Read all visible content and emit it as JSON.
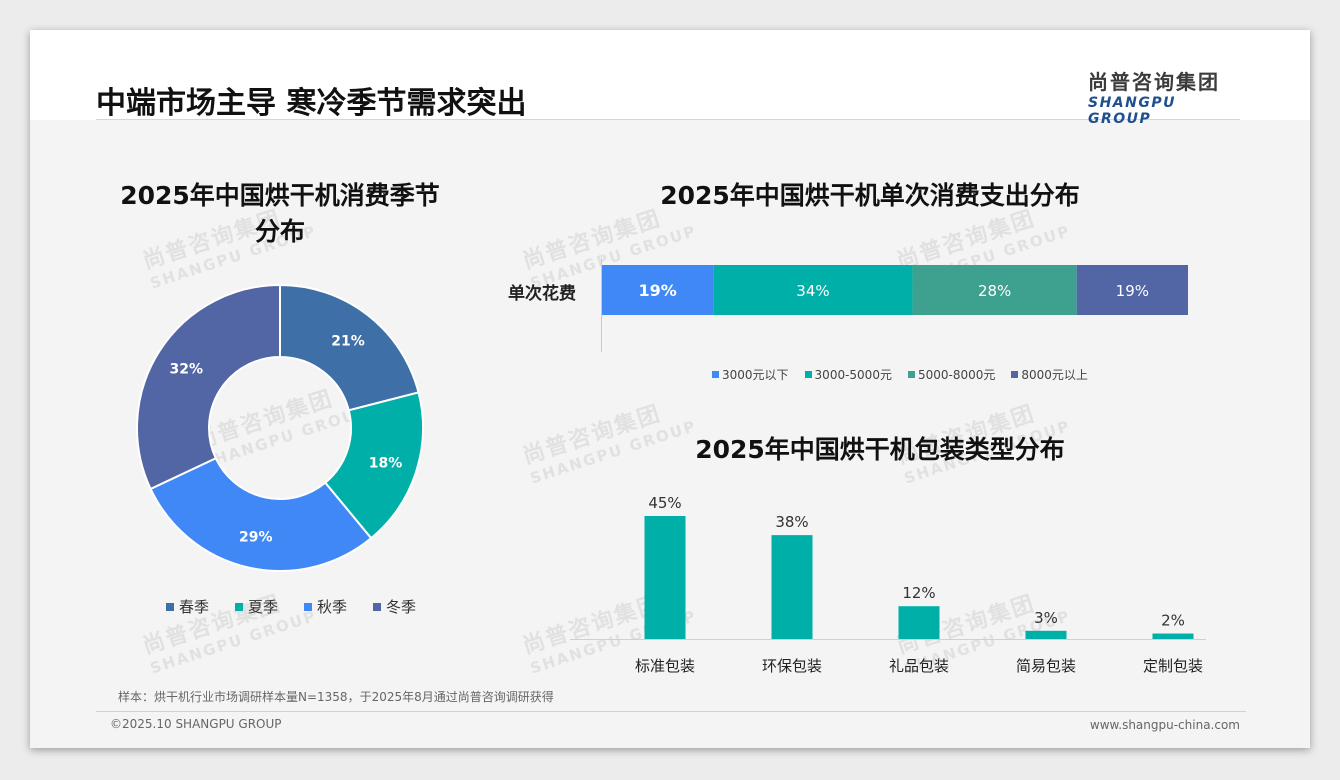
{
  "header": {
    "title": "中端市场主导 寒冷季节需求突出",
    "logo_cn": "尚普咨询集团",
    "logo_en": "SHANGPU GROUP"
  },
  "watermark": {
    "cn": "尚普咨询集团",
    "en": "SHANGPU GROUP"
  },
  "colors": {
    "spring": "#3e6fa6",
    "summer": "#00b0a8",
    "autumn": "#3f88f5",
    "winter": "#5265a4",
    "spend_1": "#3f88f5",
    "spend_2": "#00b0a8",
    "spend_3": "#3ea08e",
    "spend_4": "#5265a4",
    "package": "#00b0a8"
  },
  "chart_data": [
    {
      "type": "pie",
      "title": "2025年中国烘干机消费季节分布",
      "categories": [
        "春季",
        "夏季",
        "秋季",
        "冬季"
      ],
      "values": [
        21,
        18,
        29,
        32
      ],
      "data_labels": [
        "21%",
        "18%",
        "29%",
        "32%"
      ],
      "donut": true,
      "legend": "bottom"
    },
    {
      "type": "bar",
      "orientation": "horizontal-stacked",
      "title": "2025年中国烘干机单次消费支出分布",
      "categories": [
        "单次花费"
      ],
      "series": [
        {
          "name": "3000元以下",
          "values": [
            19
          ],
          "label": "19%"
        },
        {
          "name": "3000-5000元",
          "values": [
            34
          ],
          "label": "34%"
        },
        {
          "name": "5000-8000元",
          "values": [
            28
          ],
          "label": "28%"
        },
        {
          "name": "8000元以上",
          "values": [
            19
          ],
          "label": "19%"
        }
      ],
      "legend": "bottom"
    },
    {
      "type": "bar",
      "title": "2025年中国烘干机包装类型分布",
      "categories": [
        "标准包装",
        "环保包装",
        "礼品包装",
        "简易包装",
        "定制包装"
      ],
      "values": [
        45,
        38,
        12,
        3,
        2
      ],
      "data_labels": [
        "45%",
        "38%",
        "12%",
        "3%",
        "2%"
      ],
      "ylim": [
        0,
        50
      ],
      "grid": false
    }
  ],
  "footer": {
    "sample_note": "样本：烘干机行业市场调研样本量N=1358，于2025年8月通过尚普咨询调研获得",
    "copyright": "©2025.10 SHANGPU GROUP",
    "website": "www.shangpu-china.com"
  }
}
